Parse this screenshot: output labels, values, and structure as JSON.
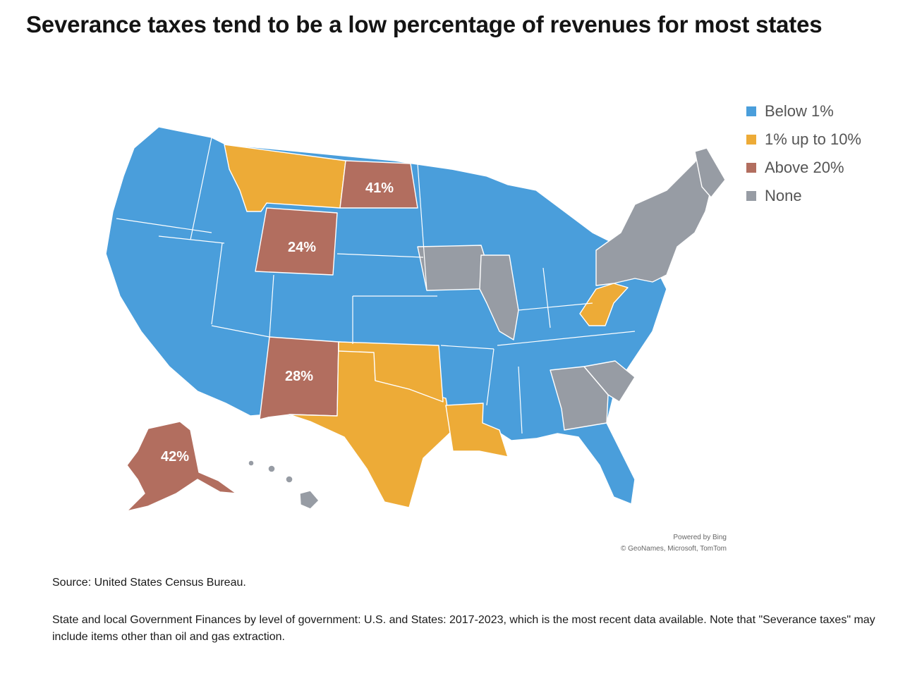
{
  "title": "Severance taxes tend to be a low percentage of revenues for most states",
  "colors": {
    "below1": "#4a9edb",
    "mid": "#edab37",
    "above20": "#b26e5f",
    "none": "#979ca4"
  },
  "legend": [
    {
      "label": "Below 1%",
      "color": "#4a9edb"
    },
    {
      "label": "1% up to 10%",
      "color": "#edab37"
    },
    {
      "label": "Above 20%",
      "color": "#b26e5f"
    },
    {
      "label": "None",
      "color": "#979ca4"
    }
  ],
  "map_labels": {
    "north_dakota": "41%",
    "wyoming": "24%",
    "new_mexico": "28%",
    "alaska": "42%"
  },
  "credit": {
    "line1": "Powered by Bing",
    "line2": "© GeoNames, Microsoft, TomTom"
  },
  "source": "Source: United States Census Bureau.",
  "note": "State and local Government Finances by level of government: U.S. and States: 2017-2023, which is the most recent data available. Note that \"Severance taxes\" may include items other than oil and gas extraction."
}
